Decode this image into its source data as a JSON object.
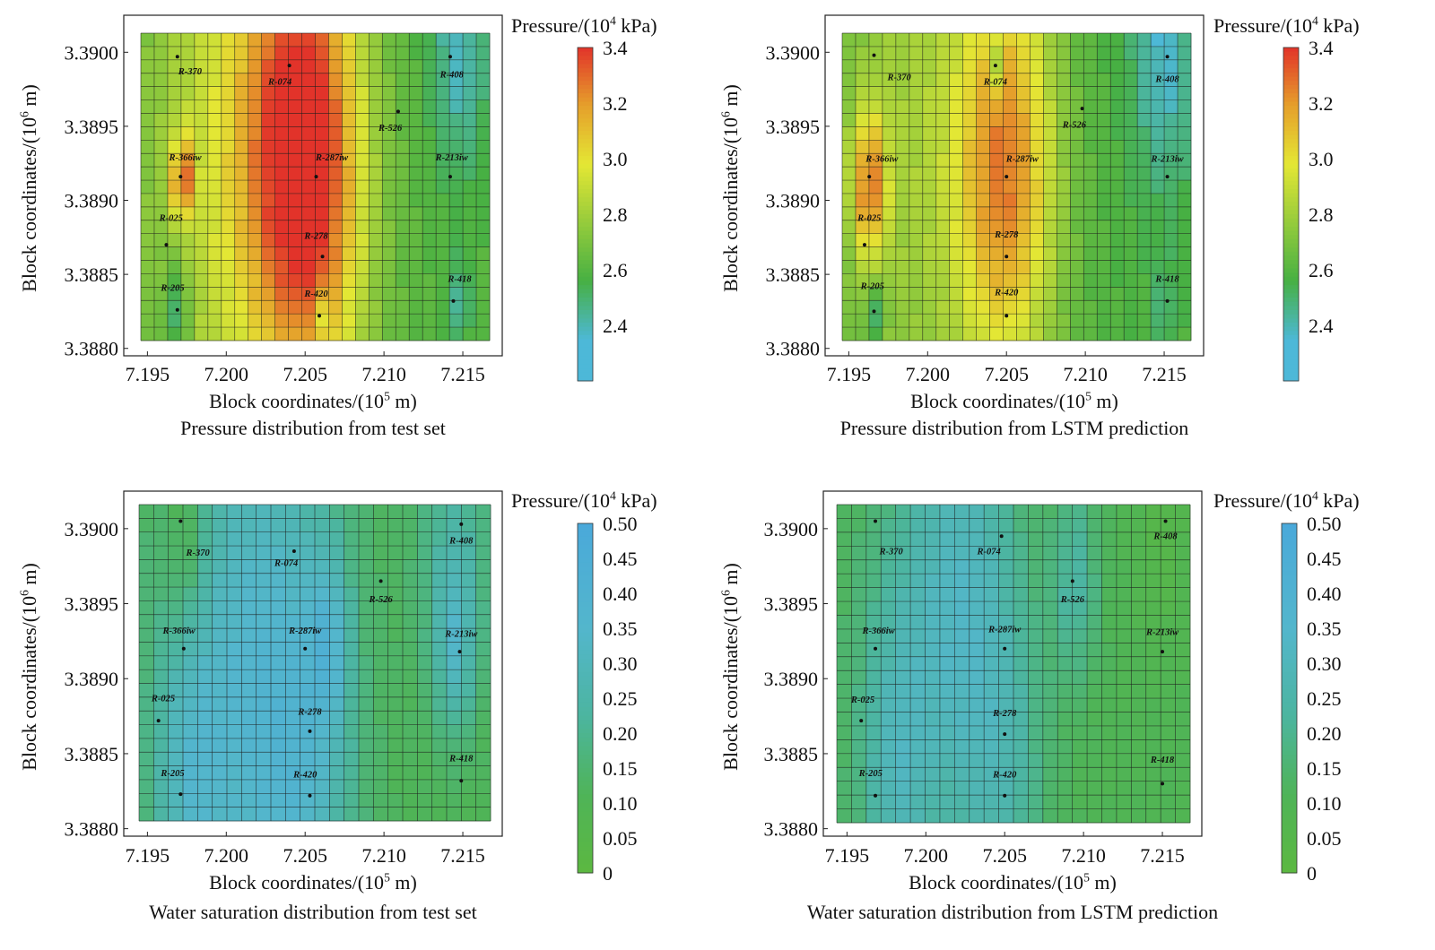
{
  "chart_data": [
    {
      "type": "heatmap",
      "caption": "Pressure distribution from test set",
      "xlabel": "Block coordinates/(10",
      "xlabel_exp": "5",
      "xlabel_unit": " m)",
      "ylabel": "Block coordinates/(10",
      "ylabel_exp": "6",
      "ylabel_unit": " m)",
      "x_ticks": [
        "7.195",
        "7.200",
        "7.205",
        "7.210",
        "7.215"
      ],
      "x_tick_values": [
        7.195,
        7.2,
        7.205,
        7.21,
        7.215
      ],
      "y_ticks": [
        "3.3900",
        "3.3895",
        "3.3890",
        "3.3885",
        "3.3880"
      ],
      "y_tick_values": [
        3.39,
        3.3895,
        3.389,
        3.3885,
        3.388
      ],
      "xlim": [
        7.1935,
        7.2175
      ],
      "ylim": [
        3.38795,
        3.39025
      ],
      "grid": true,
      "grid_cols": 26,
      "grid_rows": 23,
      "colorbar": {
        "title": "Pressure/(10",
        "title_exp": "4",
        "title_unit": " kPa)",
        "ticks": [
          "3.4",
          "3.2",
          "3.0",
          "2.8",
          "2.6",
          "2.4"
        ],
        "tick_values": [
          3.4,
          3.2,
          3.0,
          2.8,
          2.6,
          2.4
        ],
        "range": [
          2.2,
          3.4
        ],
        "colors": [
          "#4db8d8",
          "#4db8d8",
          "#47b043",
          "#e4e734",
          "#e59d2b",
          "#e2332a"
        ],
        "stops": [
          0,
          0.12,
          0.3,
          0.65,
          0.83,
          1
        ]
      },
      "fields": {
        "base": 2.6,
        "blobs": [
          {
            "x": 7.2053,
            "y": 3.3892,
            "amp": 0.75,
            "r": 0.0035
          },
          {
            "x": 7.1972,
            "y": 3.38915,
            "amp": 0.62,
            "r": 0.0006
          },
          {
            "x": 7.1995,
            "y": 3.3893,
            "amp": 0.25,
            "r": 0.0055
          },
          {
            "x": 7.203,
            "y": 3.3897,
            "amp": 0.2,
            "r": 0.004
          },
          {
            "x": 7.2148,
            "y": 3.39,
            "amp": -0.22,
            "r": 0.0018
          },
          {
            "x": 7.1968,
            "y": 3.38825,
            "amp": -0.25,
            "r": 0.0009
          },
          {
            "x": 7.2059,
            "y": 3.38822,
            "amp": -0.2,
            "r": 0.0004
          },
          {
            "x": 7.2148,
            "y": 3.38832,
            "amp": -0.2,
            "r": 0.0006
          }
        ]
      },
      "wells": [
        {
          "name": "R-370",
          "x": 7.1969,
          "y": 3.38997,
          "lx": 7.1977,
          "ly": 3.38985
        },
        {
          "name": "R-074",
          "x": 7.204,
          "y": 3.38991,
          "lx": 7.2034,
          "ly": 3.38978
        },
        {
          "name": "R-408",
          "x": 7.2142,
          "y": 3.38997,
          "lx": 7.2143,
          "ly": 3.38983
        },
        {
          "name": "R-526",
          "x": 7.2109,
          "y": 3.3896,
          "lx": 7.2104,
          "ly": 3.38947
        },
        {
          "name": "R-366iw",
          "x": 7.1971,
          "y": 3.38916,
          "lx": 7.1974,
          "ly": 3.38927
        },
        {
          "name": "R-287iw",
          "x": 7.2057,
          "y": 3.38916,
          "lx": 7.2067,
          "ly": 3.38927
        },
        {
          "name": "R-213iw",
          "x": 7.2142,
          "y": 3.38916,
          "lx": 7.2143,
          "ly": 3.38927
        },
        {
          "name": "R-025",
          "x": 7.1962,
          "y": 3.3887,
          "lx": 7.1965,
          "ly": 3.38886
        },
        {
          "name": "R-278",
          "x": 7.2061,
          "y": 3.38862,
          "lx": 7.2057,
          "ly": 3.38874
        },
        {
          "name": "R-205",
          "x": 7.1969,
          "y": 3.38826,
          "lx": 7.1966,
          "ly": 3.38839
        },
        {
          "name": "R-420",
          "x": 7.2059,
          "y": 3.38822,
          "lx": 7.2057,
          "ly": 3.38835
        },
        {
          "name": "R-418",
          "x": 7.2144,
          "y": 3.38832,
          "lx": 7.2148,
          "ly": 3.38845
        }
      ]
    },
    {
      "type": "heatmap",
      "caption": "Pressure distribution from LSTM prediction",
      "xlabel": "Block coordinates/(10",
      "xlabel_exp": "5",
      "xlabel_unit": " m)",
      "ylabel": "Block coordinates/(10",
      "ylabel_exp": "6",
      "ylabel_unit": " m)",
      "x_ticks": [
        "7.195",
        "7.200",
        "7.205",
        "7.210",
        "7.215"
      ],
      "x_tick_values": [
        7.195,
        7.2,
        7.205,
        7.21,
        7.215
      ],
      "y_ticks": [
        "3.3900",
        "3.3895",
        "3.3890",
        "3.3885",
        "3.3880"
      ],
      "y_tick_values": [
        3.39,
        3.3895,
        3.389,
        3.3885,
        3.388
      ],
      "xlim": [
        7.1935,
        7.2175
      ],
      "ylim": [
        3.38795,
        3.39025
      ],
      "grid": true,
      "grid_cols": 26,
      "grid_rows": 23,
      "colorbar": {
        "title": "Pressure/(10",
        "title_exp": "4",
        "title_unit": " kPa)",
        "ticks": [
          "3.4",
          "3.2",
          "3.0",
          "2.8",
          "2.6",
          "2.4"
        ],
        "tick_values": [
          3.4,
          3.2,
          3.0,
          2.8,
          2.6,
          2.4
        ],
        "range": [
          2.2,
          3.4
        ],
        "colors": [
          "#4db8d8",
          "#4db8d8",
          "#47b043",
          "#e4e734",
          "#e59d2b",
          "#e2332a"
        ],
        "stops": [
          0,
          0.12,
          0.3,
          0.65,
          0.83,
          1
        ]
      },
      "fields": {
        "base": 2.58,
        "blobs": [
          {
            "x": 7.205,
            "y": 3.3892,
            "amp": 0.62,
            "r": 0.0032
          },
          {
            "x": 7.1963,
            "y": 3.3891,
            "amp": 0.55,
            "r": 0.0011
          },
          {
            "x": 7.199,
            "y": 3.3895,
            "amp": 0.22,
            "r": 0.0055
          },
          {
            "x": 7.215,
            "y": 3.39,
            "amp": -0.22,
            "r": 0.002
          },
          {
            "x": 7.2043,
            "y": 3.38991,
            "amp": -0.3,
            "r": 0.0004
          },
          {
            "x": 7.1967,
            "y": 3.38825,
            "amp": -0.25,
            "r": 0.0005
          },
          {
            "x": 7.215,
            "y": 3.38832,
            "amp": -0.12,
            "r": 0.0006
          }
        ]
      },
      "wells": [
        {
          "name": "R-370",
          "x": 7.1966,
          "y": 3.38998,
          "lx": 7.1982,
          "ly": 3.38981
        },
        {
          "name": "R-074",
          "x": 7.2043,
          "y": 3.38991,
          "lx": 7.2043,
          "ly": 3.38978
        },
        {
          "name": "R-408",
          "x": 7.2152,
          "y": 3.38997,
          "lx": 7.2152,
          "ly": 3.3898
        },
        {
          "name": "R-526",
          "x": 7.2098,
          "y": 3.38962,
          "lx": 7.2093,
          "ly": 3.38949
        },
        {
          "name": "R-366iw",
          "x": 7.1963,
          "y": 3.38916,
          "lx": 7.1971,
          "ly": 3.38926
        },
        {
          "name": "R-287iw",
          "x": 7.205,
          "y": 3.38916,
          "lx": 7.206,
          "ly": 3.38926
        },
        {
          "name": "R-213iw",
          "x": 7.2152,
          "y": 3.38916,
          "lx": 7.2152,
          "ly": 3.38926
        },
        {
          "name": "R-025",
          "x": 7.196,
          "y": 3.3887,
          "lx": 7.1963,
          "ly": 3.38886
        },
        {
          "name": "R-278",
          "x": 7.205,
          "y": 3.38862,
          "lx": 7.205,
          "ly": 3.38875
        },
        {
          "name": "R-205",
          "x": 7.1966,
          "y": 3.38825,
          "lx": 7.1965,
          "ly": 3.3884
        },
        {
          "name": "R-420",
          "x": 7.205,
          "y": 3.38822,
          "lx": 7.205,
          "ly": 3.38836
        },
        {
          "name": "R-418",
          "x": 7.2152,
          "y": 3.38832,
          "lx": 7.2152,
          "ly": 3.38845
        }
      ]
    },
    {
      "type": "heatmap",
      "caption": "Water saturation distribution from test set",
      "xlabel": "Block coordinates/(10",
      "xlabel_exp": "5",
      "xlabel_unit": " m)",
      "ylabel": "Block coordinates/(10",
      "ylabel_exp": "6",
      "ylabel_unit": " m)",
      "x_ticks": [
        "7.195",
        "7.200",
        "7.205",
        "7.210",
        "7.215"
      ],
      "x_tick_values": [
        7.195,
        7.2,
        7.205,
        7.21,
        7.215
      ],
      "y_ticks": [
        "3.3900",
        "3.3895",
        "3.3890",
        "3.3885",
        "3.3880"
      ],
      "y_tick_values": [
        3.39,
        3.3895,
        3.389,
        3.3885,
        3.388
      ],
      "xlim": [
        7.1935,
        7.2175
      ],
      "ylim": [
        3.38795,
        3.39025
      ],
      "grid": true,
      "grid_cols": 24,
      "grid_rows": 23,
      "colorbar": {
        "title": "Pressure/(10",
        "title_exp": "4",
        "title_unit": " kPa)",
        "ticks": [
          "0.50",
          "0.45",
          "0.40",
          "0.35",
          "0.30",
          "0.25",
          "0.20",
          "0.15",
          "0.10",
          "0.05",
          "0"
        ],
        "tick_values": [
          0.5,
          0.45,
          0.4,
          0.35,
          0.3,
          0.25,
          0.2,
          0.15,
          0.1,
          0.05,
          0
        ],
        "range": [
          0,
          0.5
        ],
        "colors": [
          "#5cb841",
          "#4fb457",
          "#4cb5a0",
          "#53b6cc",
          "#4aa9da"
        ],
        "stops": [
          0,
          0.22,
          0.45,
          0.7,
          1
        ]
      },
      "fields": {
        "base": 0.1,
        "blobs": [
          {
            "x": 7.203,
            "y": 3.3892,
            "amp": 0.17,
            "r": 0.005
          },
          {
            "x": 7.199,
            "y": 3.3887,
            "amp": 0.12,
            "r": 0.0045
          },
          {
            "x": 7.2065,
            "y": 3.38925,
            "amp": 0.14,
            "r": 0.0012
          },
          {
            "x": 7.2145,
            "y": 3.38985,
            "amp": 0.13,
            "r": 0.0025
          },
          {
            "x": 7.2145,
            "y": 3.3892,
            "amp": 0.14,
            "r": 0.0012
          },
          {
            "x": 7.205,
            "y": 3.38835,
            "amp": 0.12,
            "r": 0.003
          },
          {
            "x": 7.1975,
            "y": 3.3883,
            "amp": 0.1,
            "r": 0.002
          },
          {
            "x": 7.1975,
            "y": 3.3899,
            "amp": -0.1,
            "r": 0.0014
          }
        ]
      },
      "wells": [
        {
          "name": "R-370",
          "x": 7.1971,
          "y": 3.39005,
          "lx": 7.1982,
          "ly": 3.38982
        },
        {
          "name": "R-074",
          "x": 7.2043,
          "y": 3.38985,
          "lx": 7.2038,
          "ly": 3.38975
        },
        {
          "name": "R-408",
          "x": 7.2149,
          "y": 3.39003,
          "lx": 7.2149,
          "ly": 3.3899
        },
        {
          "name": "R-526",
          "x": 7.2098,
          "y": 3.38965,
          "lx": 7.2098,
          "ly": 3.38951
        },
        {
          "name": "R-366iw",
          "x": 7.1973,
          "y": 3.3892,
          "lx": 7.197,
          "ly": 3.3893
        },
        {
          "name": "R-287iw",
          "x": 7.205,
          "y": 3.3892,
          "lx": 7.205,
          "ly": 3.3893
        },
        {
          "name": "R-213iw",
          "x": 7.2148,
          "y": 3.38918,
          "lx": 7.2149,
          "ly": 3.38928
        },
        {
          "name": "R-025",
          "x": 7.1957,
          "y": 3.38872,
          "lx": 7.196,
          "ly": 3.38885
        },
        {
          "name": "R-278",
          "x": 7.2053,
          "y": 3.38865,
          "lx": 7.2053,
          "ly": 3.38876
        },
        {
          "name": "R-205",
          "x": 7.1971,
          "y": 3.38823,
          "lx": 7.1966,
          "ly": 3.38835
        },
        {
          "name": "R-420",
          "x": 7.2053,
          "y": 3.38822,
          "lx": 7.205,
          "ly": 3.38834
        },
        {
          "name": "R-418",
          "x": 7.2149,
          "y": 3.38832,
          "lx": 7.2149,
          "ly": 3.38845
        }
      ]
    },
    {
      "type": "heatmap",
      "caption": "Water saturation distribution from LSTM prediction",
      "xlabel": "Block coordinates/(10",
      "xlabel_exp": "5",
      "xlabel_unit": " m)",
      "ylabel": "Block coordinates/(10",
      "ylabel_exp": "6",
      "ylabel_unit": " m)",
      "x_ticks": [
        "7.195",
        "7.200",
        "7.205",
        "7.210",
        "7.215"
      ],
      "x_tick_values": [
        7.195,
        7.2,
        7.205,
        7.21,
        7.215
      ],
      "y_ticks": [
        "3.3900",
        "3.3895",
        "3.3890",
        "3.3885",
        "3.3880"
      ],
      "y_tick_values": [
        3.39,
        3.3895,
        3.389,
        3.3885,
        3.388
      ],
      "xlim": [
        7.1935,
        7.2175
      ],
      "ylim": [
        3.38795,
        3.39025
      ],
      "grid": true,
      "grid_cols": 24,
      "grid_rows": 23,
      "colorbar": {
        "title": "Pressure/(10",
        "title_exp": "4",
        "title_unit": " kPa)",
        "ticks": [
          "0.50",
          "0.45",
          "0.40",
          "0.35",
          "0.30",
          "0.25",
          "0.20",
          "0.15",
          "0.10",
          "0.05",
          "0"
        ],
        "tick_values": [
          0.5,
          0.45,
          0.4,
          0.35,
          0.3,
          0.25,
          0.2,
          0.15,
          0.1,
          0.05,
          0
        ],
        "range": [
          0,
          0.5
        ],
        "colors": [
          "#5cb841",
          "#4fb457",
          "#4cb5a0",
          "#53b6cc",
          "#4aa9da"
        ],
        "stops": [
          0,
          0.22,
          0.45,
          0.7,
          1
        ]
      },
      "fields": {
        "base": 0.1,
        "blobs": [
          {
            "x": 7.2025,
            "y": 3.3896,
            "amp": 0.18,
            "r": 0.0035
          },
          {
            "x": 7.1985,
            "y": 3.3889,
            "amp": 0.11,
            "r": 0.0035
          },
          {
            "x": 7.2095,
            "y": 3.38965,
            "amp": 0.13,
            "r": 0.0015
          },
          {
            "x": 7.205,
            "y": 3.38835,
            "amp": 0.11,
            "r": 0.0028
          },
          {
            "x": 7.198,
            "y": 3.3883,
            "amp": 0.09,
            "r": 0.002
          },
          {
            "x": 7.215,
            "y": 3.3899,
            "amp": -0.05,
            "r": 0.0015
          }
        ]
      },
      "wells": [
        {
          "name": "R-370",
          "x": 7.1968,
          "y": 3.39005,
          "lx": 7.1978,
          "ly": 3.38983
        },
        {
          "name": "R-074",
          "x": 7.2048,
          "y": 3.38995,
          "lx": 7.204,
          "ly": 3.38983
        },
        {
          "name": "R-408",
          "x": 7.2152,
          "y": 3.39005,
          "lx": 7.2152,
          "ly": 3.38993
        },
        {
          "name": "R-526",
          "x": 7.2093,
          "y": 3.38965,
          "lx": 7.2093,
          "ly": 3.38951
        },
        {
          "name": "R-366iw",
          "x": 7.1968,
          "y": 3.3892,
          "lx": 7.197,
          "ly": 3.3893
        },
        {
          "name": "R-287iw",
          "x": 7.205,
          "y": 3.3892,
          "lx": 7.205,
          "ly": 3.38931
        },
        {
          "name": "R-213iw",
          "x": 7.215,
          "y": 3.38918,
          "lx": 7.215,
          "ly": 3.38929
        },
        {
          "name": "R-025",
          "x": 7.1959,
          "y": 3.38872,
          "lx": 7.196,
          "ly": 3.38884
        },
        {
          "name": "R-278",
          "x": 7.205,
          "y": 3.38863,
          "lx": 7.205,
          "ly": 3.38875
        },
        {
          "name": "R-205",
          "x": 7.1968,
          "y": 3.38822,
          "lx": 7.1965,
          "ly": 3.38835
        },
        {
          "name": "R-420",
          "x": 7.205,
          "y": 3.38822,
          "lx": 7.205,
          "ly": 3.38834
        },
        {
          "name": "R-418",
          "x": 7.215,
          "y": 3.3883,
          "lx": 7.215,
          "ly": 3.38844
        }
      ]
    }
  ]
}
